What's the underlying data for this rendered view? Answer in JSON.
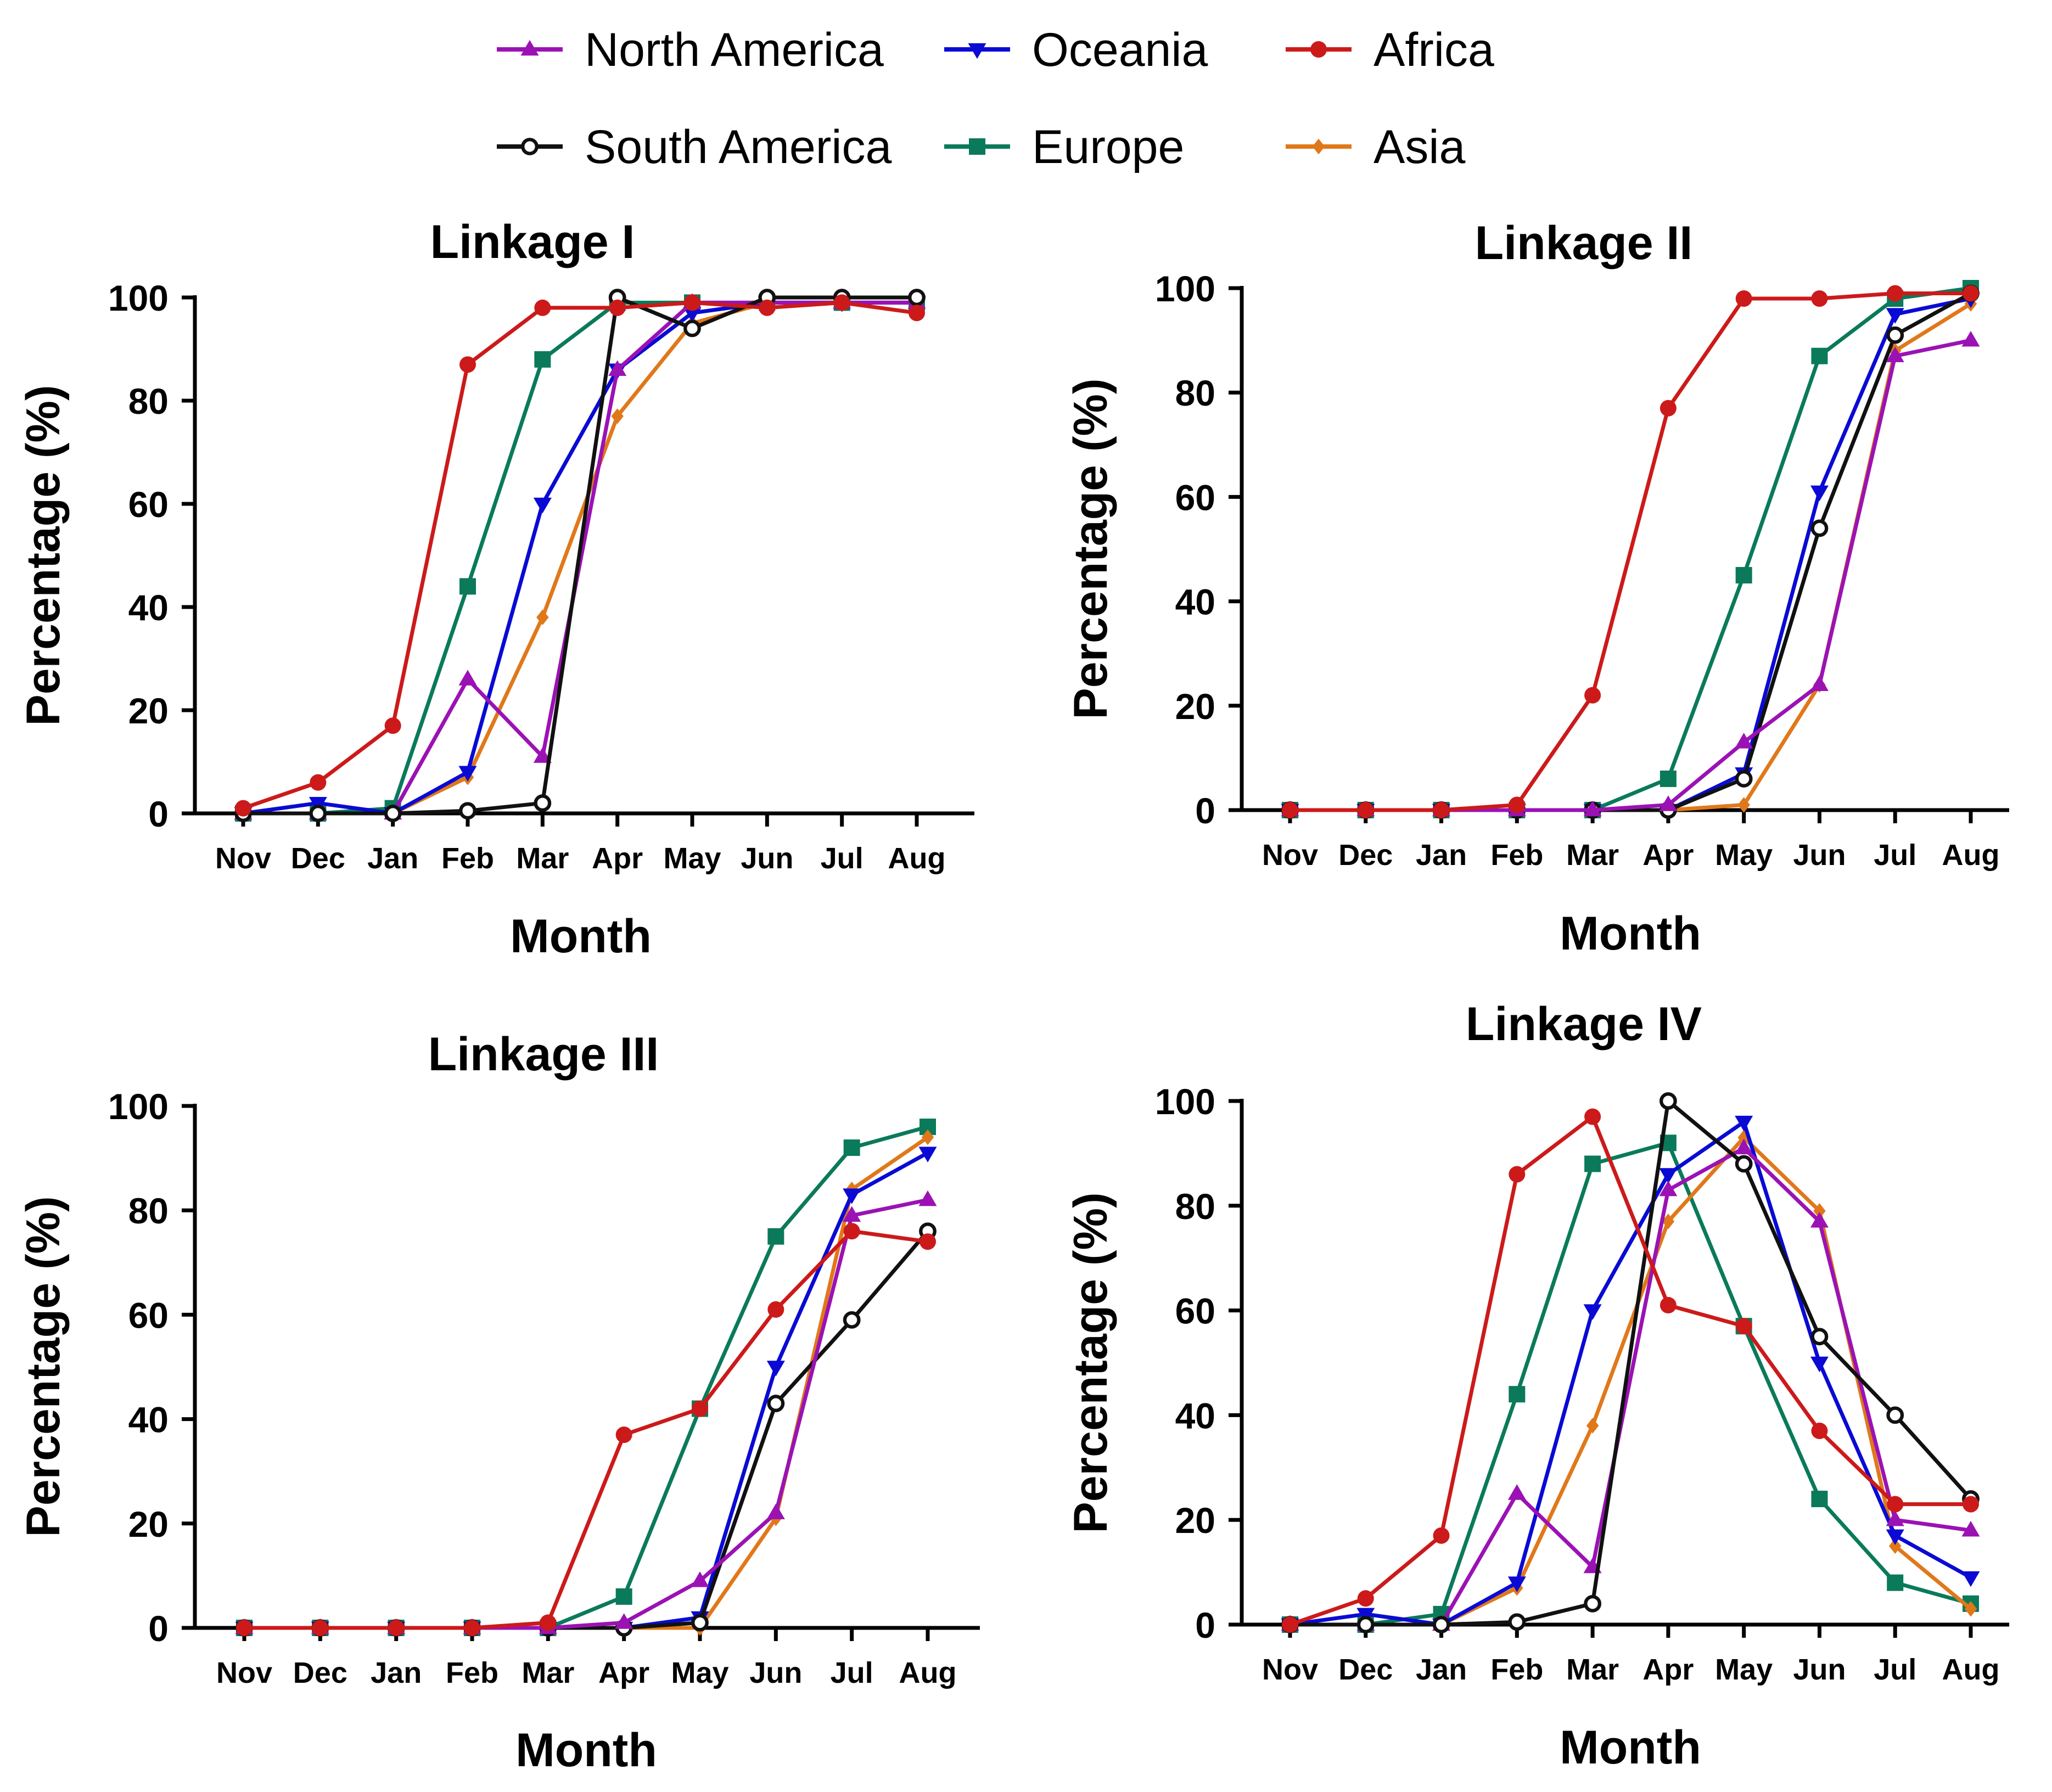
{
  "legend": [
    {
      "name": "North America",
      "color": "#9b12b4",
      "marker": "triangle-up"
    },
    {
      "name": "Oceania",
      "color": "#0a0ad4",
      "marker": "triangle-down"
    },
    {
      "name": "Africa",
      "color": "#cc1a1a",
      "marker": "circle-filled"
    },
    {
      "name": "South America",
      "color": "#111111",
      "marker": "circle-open"
    },
    {
      "name": "Europe",
      "color": "#0a7a5a",
      "marker": "square"
    },
    {
      "name": "Asia",
      "color": "#e0781a",
      "marker": "diamond"
    }
  ],
  "chart_data": [
    {
      "type": "line",
      "title": "Linkage I",
      "xlabel": "Month",
      "ylabel": "Percentage (%)",
      "ylim": [
        0,
        100
      ],
      "yticks": [
        0,
        20,
        40,
        60,
        80,
        100
      ],
      "categories": [
        "Nov",
        "Dec",
        "Jan",
        "Feb",
        "Mar",
        "Apr",
        "May",
        "Jun",
        "Jul",
        "Aug"
      ],
      "series": [
        {
          "name": "Europe",
          "values": [
            0,
            0,
            1,
            44,
            88,
            99,
            99,
            99,
            99,
            99
          ]
        },
        {
          "name": "Asia",
          "values": [
            0,
            0,
            0,
            7,
            38,
            77,
            95,
            99,
            99,
            99
          ]
        },
        {
          "name": "Oceania",
          "values": [
            0,
            2,
            0,
            8,
            60,
            86,
            97,
            99,
            99,
            99
          ]
        },
        {
          "name": "North America",
          "values": [
            0,
            0,
            0,
            26,
            11,
            86,
            99,
            99,
            99,
            99
          ]
        },
        {
          "name": "South America",
          "values": [
            0,
            0,
            0,
            0.5,
            2,
            100,
            94,
            100,
            100,
            100
          ]
        },
        {
          "name": "Africa",
          "values": [
            1,
            6,
            17,
            87,
            98,
            98,
            99,
            98,
            99,
            97
          ]
        }
      ]
    },
    {
      "type": "line",
      "title": "Linkage II",
      "xlabel": "Month",
      "ylabel": "Percentage (%)",
      "ylim": [
        0,
        100
      ],
      "yticks": [
        0,
        20,
        40,
        60,
        80,
        100
      ],
      "categories": [
        "Nov",
        "Dec",
        "Jan",
        "Feb",
        "Mar",
        "Apr",
        "May",
        "Jun",
        "Jul",
        "Aug"
      ],
      "series": [
        {
          "name": "Europe",
          "values": [
            0,
            0,
            0,
            0,
            0,
            6,
            45,
            87,
            98,
            100
          ]
        },
        {
          "name": "Asia",
          "values": [
            0,
            0,
            0,
            0,
            0,
            0,
            1,
            24,
            88,
            97
          ]
        },
        {
          "name": "Oceania",
          "values": [
            0,
            0,
            0,
            0,
            0,
            0,
            7,
            61,
            95,
            98
          ]
        },
        {
          "name": "South America",
          "values": [
            0,
            0,
            0,
            0,
            0,
            0,
            6,
            54,
            91,
            99
          ]
        },
        {
          "name": "North America",
          "values": [
            0,
            0,
            0,
            0,
            0,
            1,
            13,
            24,
            87,
            90
          ]
        },
        {
          "name": "Africa",
          "values": [
            0,
            0,
            0,
            1,
            22,
            77,
            98,
            98,
            99,
            99
          ]
        }
      ]
    },
    {
      "type": "line",
      "title": "Linkage III",
      "xlabel": "Month",
      "ylabel": "Percentage (%)",
      "ylim": [
        0,
        100
      ],
      "yticks": [
        0,
        20,
        40,
        60,
        80,
        100
      ],
      "categories": [
        "Nov",
        "Dec",
        "Jan",
        "Feb",
        "Mar",
        "Apr",
        "May",
        "Jun",
        "Jul",
        "Aug"
      ],
      "series": [
        {
          "name": "Europe",
          "values": [
            0,
            0,
            0,
            0,
            0,
            6,
            42,
            75,
            92,
            96
          ]
        },
        {
          "name": "Asia",
          "values": [
            0,
            0,
            0,
            0,
            0,
            0,
            0,
            21,
            84,
            94
          ]
        },
        {
          "name": "Oceania",
          "values": [
            0,
            0,
            0,
            0,
            0,
            0,
            2,
            50,
            83,
            91
          ]
        },
        {
          "name": "South America",
          "values": [
            0,
            0,
            0,
            0,
            0,
            0,
            1,
            43,
            59,
            76
          ]
        },
        {
          "name": "North America",
          "values": [
            0,
            0,
            0,
            0,
            0,
            1,
            9,
            22,
            79,
            82
          ]
        },
        {
          "name": "Africa",
          "values": [
            0,
            0,
            0,
            0,
            1,
            37,
            42,
            61,
            76,
            74
          ]
        }
      ]
    },
    {
      "type": "line",
      "title": "Linkage IV",
      "xlabel": "Month",
      "ylabel": "Percentage (%)",
      "ylim": [
        0,
        100
      ],
      "yticks": [
        0,
        20,
        40,
        60,
        80,
        100
      ],
      "categories": [
        "Nov",
        "Dec",
        "Jan",
        "Feb",
        "Mar",
        "Apr",
        "May",
        "Jun",
        "Jul",
        "Aug"
      ],
      "series": [
        {
          "name": "Europe",
          "values": [
            0,
            0,
            2,
            44,
            88,
            92,
            57,
            24,
            8,
            4
          ]
        },
        {
          "name": "Asia",
          "values": [
            0,
            0,
            0,
            7,
            38,
            77,
            93,
            79,
            15,
            3
          ]
        },
        {
          "name": "Oceania",
          "values": [
            0,
            2,
            0,
            8,
            60,
            86,
            96,
            50,
            17,
            9
          ]
        },
        {
          "name": "North America",
          "values": [
            0,
            0,
            0,
            25,
            11,
            83,
            91,
            77,
            20,
            18
          ]
        },
        {
          "name": "South America",
          "values": [
            0,
            0,
            0,
            0.5,
            4,
            100,
            88,
            55,
            40,
            24
          ]
        },
        {
          "name": "Africa",
          "values": [
            0,
            5,
            17,
            86,
            97,
            61,
            57,
            37,
            23,
            23
          ]
        }
      ]
    }
  ]
}
